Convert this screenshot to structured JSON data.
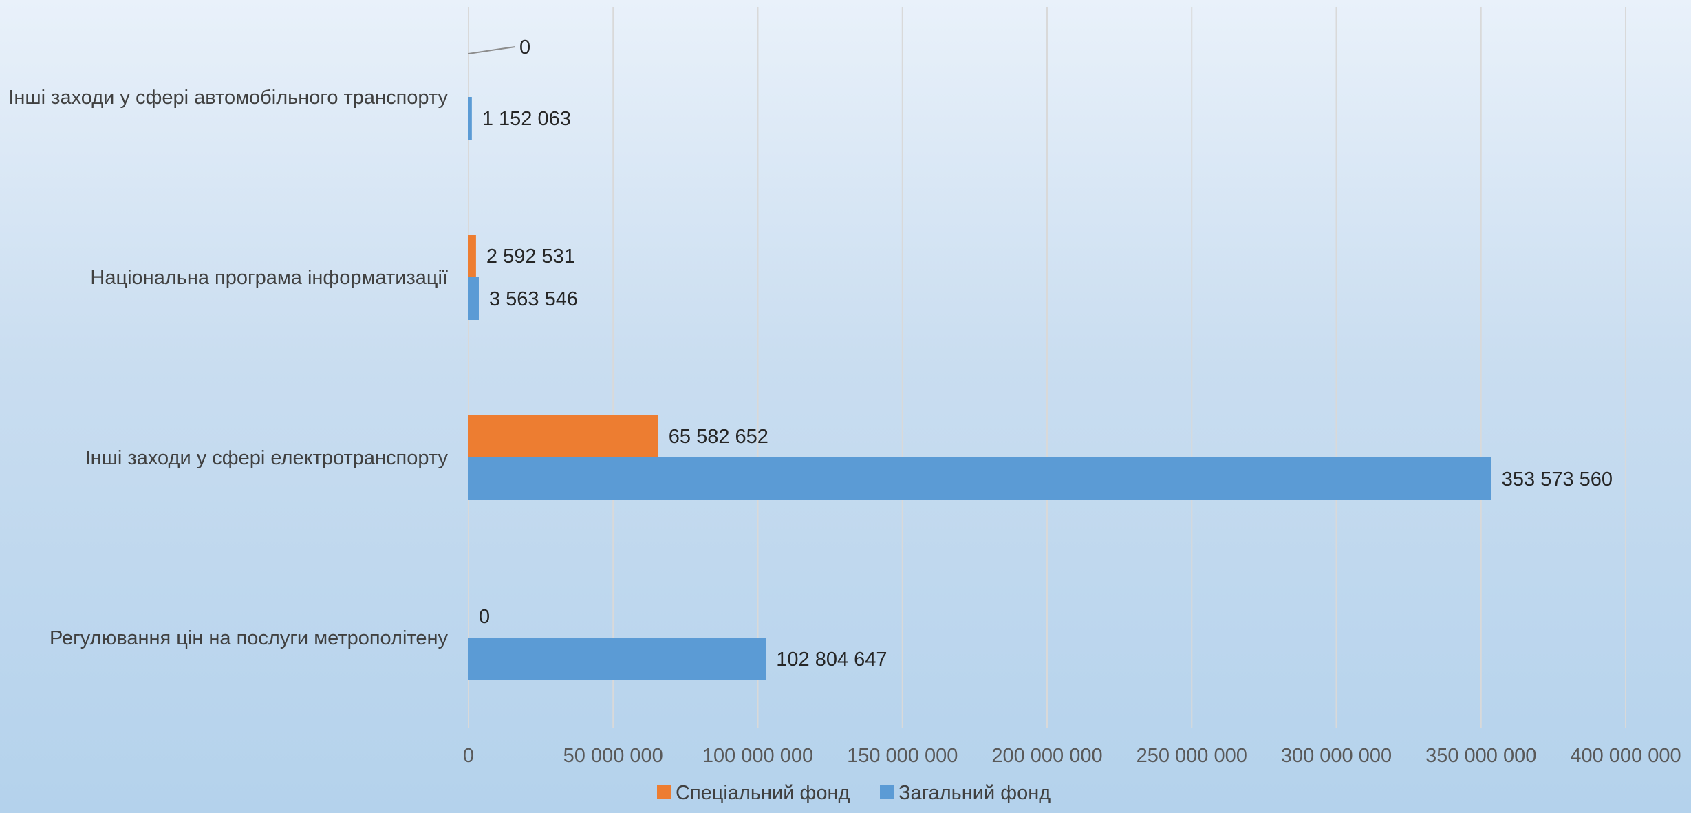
{
  "chart_data": {
    "type": "bar",
    "orientation": "horizontal",
    "title": "",
    "xlabel": "",
    "ylabel": "",
    "categories": [
      "Регулювання цін на послуги метрополітену",
      "Інші заходи у сфері  електротранспорту",
      "Національна програма інформатизації",
      "Інші заходи у сфері автомобільного транспорту"
    ],
    "series": [
      {
        "name": "Спеціальний фонд",
        "color": "#ED7D31",
        "values": [
          0,
          65582652,
          2592531,
          0
        ],
        "labels": [
          "0",
          "65 582 652",
          "2 592 531",
          "0"
        ]
      },
      {
        "name": "Загальний фонд",
        "color": "#5B9BD5",
        "values": [
          102804647,
          353573560,
          3563546,
          1152063
        ],
        "labels": [
          "102 804 647",
          "353 573 560",
          "3 563 546",
          "1 152 063"
        ]
      }
    ],
    "xlim": [
      0,
      400000000
    ],
    "ticks": [
      0,
      50000000,
      100000000,
      150000000,
      200000000,
      250000000,
      300000000,
      350000000,
      400000000
    ],
    "tick_labels": [
      "0",
      "50 000 000",
      "100 000 000",
      "150 000 000",
      "200 000 000",
      "250 000 000",
      "300 000 000",
      "350 000 000",
      "400 000 000"
    ],
    "grid": true,
    "legend_position": "bottom",
    "gridline_color": "#d9d9d9"
  }
}
